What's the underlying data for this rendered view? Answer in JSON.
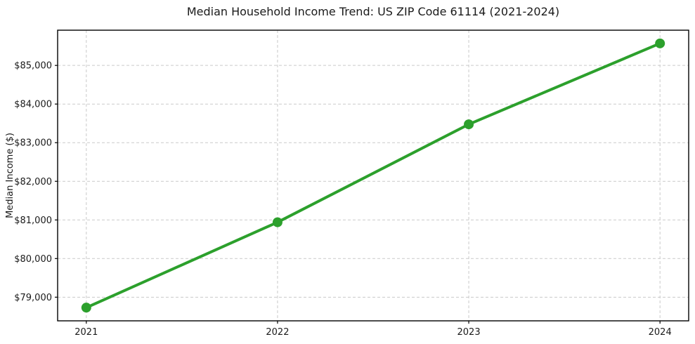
{
  "chart": {
    "title": "Median Household Income Trend: US ZIP Code 61114 (2021-2024)",
    "ylabel": "Median Income ($)"
  },
  "chart_data": {
    "type": "line",
    "title": "Median Household Income Trend: US ZIP Code 61114 (2021-2024)",
    "xlabel": "",
    "ylabel": "Median Income ($)",
    "categories": [
      "2021",
      "2022",
      "2023",
      "2024"
    ],
    "x": [
      2021,
      2022,
      2023,
      2024
    ],
    "values": [
      78730,
      80940,
      83475,
      85570
    ],
    "yticks": [
      79000,
      80000,
      81000,
      82000,
      83000,
      84000,
      85000
    ],
    "ytick_labels": [
      "$79,000",
      "$80,000",
      "$81,000",
      "$82,000",
      "$83,000",
      "$84,000",
      "$85,000"
    ],
    "xlim": [
      2020.85,
      2024.15
    ],
    "ylim": [
      78388,
      85912
    ],
    "grid": true,
    "grid_style": "dashed",
    "legend": "none",
    "line_color": "#2ca02c",
    "marker": "circle",
    "marker_color": "#2ca02c",
    "grid_color": "#c9c9c9",
    "axes_color": "#000000",
    "text_color": "#1a1a1a",
    "background_color": "#ffffff"
  }
}
